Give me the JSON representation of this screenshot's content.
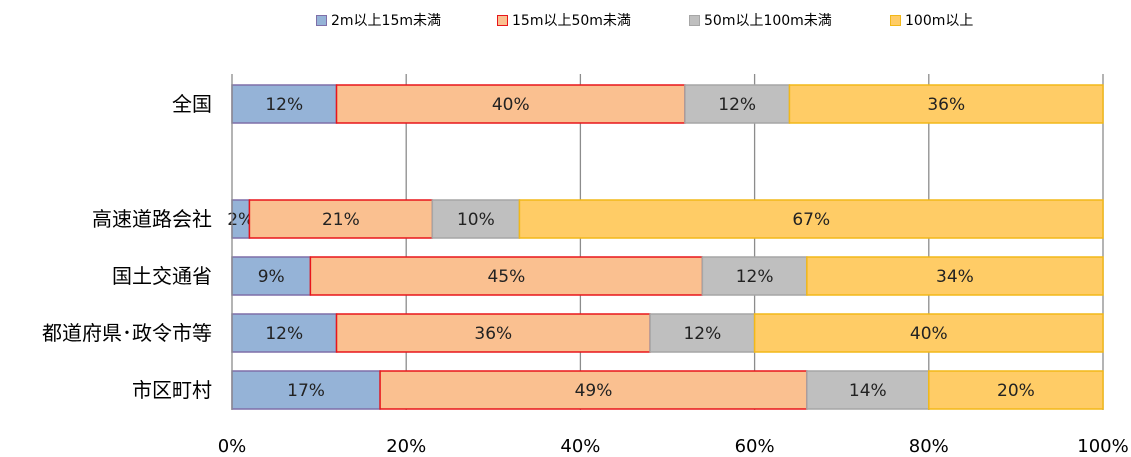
{
  "chart_data": {
    "type": "bar",
    "orientation": "horizontal",
    "stacked": "percent",
    "categories": [
      "全国",
      "",
      "高速道路会社",
      "国土交通省",
      "都道府県･政令市等",
      "市区町村"
    ],
    "series": [
      {
        "name": "2m以上15m未満",
        "values": [
          12,
          null,
          2,
          9,
          12,
          17
        ],
        "labels": [
          "12%",
          "",
          "2%",
          "9%",
          "12%",
          "17%"
        ],
        "color": "#95b3d7",
        "border": "#7f6fa8"
      },
      {
        "name": "15m以上50m未満",
        "values": [
          40,
          null,
          21,
          45,
          36,
          49
        ],
        "labels": [
          "40%",
          "",
          "21%",
          "45%",
          "36%",
          "49%"
        ],
        "color": "#fac090",
        "border": "#e8161b"
      },
      {
        "name": "50m以上100m未満",
        "values": [
          12,
          null,
          10,
          12,
          12,
          14
        ],
        "labels": [
          "12%",
          "",
          "10%",
          "12%",
          "12%",
          "14%"
        ],
        "color": "#bfbfbf",
        "border": "#a6a6a6"
      },
      {
        "name": "100m以上",
        "values": [
          36,
          null,
          67,
          34,
          40,
          20
        ],
        "labels": [
          "36%",
          "",
          "67%",
          "34%",
          "40%",
          "20%"
        ],
        "color": "#ffcc66",
        "border": "#f2b818"
      }
    ],
    "xlim": [
      0,
      100
    ],
    "xticks": [
      "0%",
      "20%",
      "40%",
      "60%",
      "80%",
      "100%"
    ],
    "grid": "vertical",
    "legend": "top"
  }
}
